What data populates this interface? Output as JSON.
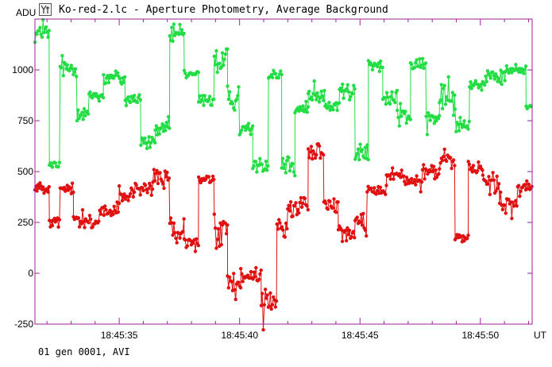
{
  "window": {
    "title": "Ko-red-2.lc - Aperture Photometry, Average Background",
    "icon": "lightcurve-app-icon"
  },
  "footer": {
    "text": "01 gen 0001, AVI"
  },
  "colors": {
    "frame": "#a020a0",
    "green": "#22dd44",
    "red": "#e01010"
  },
  "chart_data": {
    "type": "line",
    "title": "Ko-red-2.lc - Aperture Photometry, Average Background",
    "xlabel": "UT",
    "ylabel": "ADU",
    "xlim": [
      31.5,
      52.15
    ],
    "ylim": [
      -250,
      1250
    ],
    "x_ticks": [
      {
        "value": 35,
        "label": "18:45:35"
      },
      {
        "value": 40,
        "label": "18:45:40"
      },
      {
        "value": 45,
        "label": "18:45:45"
      },
      {
        "value": 50,
        "label": "18:45:50"
      }
    ],
    "y_ticks": [
      {
        "value": 1000,
        "label": "1000"
      },
      {
        "value": 750,
        "label": "750"
      },
      {
        "value": 500,
        "label": "500"
      },
      {
        "value": 250,
        "label": "250"
      },
      {
        "value": 0,
        "label": "0"
      },
      {
        "value": -250,
        "label": "-250"
      }
    ],
    "grid": false,
    "series": [
      {
        "color": "#22dd44",
        "segments": [
          {
            "x0": 31.5,
            "x1": 32.1,
            "level": 1180,
            "noise": 45
          },
          {
            "x0": 32.1,
            "x1": 32.55,
            "level": 530,
            "noise": 25
          },
          {
            "x0": 32.55,
            "x1": 33.25,
            "level": 1010,
            "noise": 35
          },
          {
            "x0": 33.25,
            "x1": 33.75,
            "level": 790,
            "noise": 40
          },
          {
            "x0": 33.75,
            "x1": 34.35,
            "level": 875,
            "noise": 25
          },
          {
            "x0": 34.35,
            "x1": 35.25,
            "level": 960,
            "noise": 40
          },
          {
            "x0": 35.25,
            "x1": 35.9,
            "level": 860,
            "noise": 40
          },
          {
            "x0": 35.9,
            "x1": 36.5,
            "level": 640,
            "noise": 35
          },
          {
            "x0": 36.5,
            "x1": 37.1,
            "level": 710,
            "noise": 30
          },
          {
            "x0": 37.1,
            "x1": 37.7,
            "level": 1170,
            "noise": 40
          },
          {
            "x0": 37.7,
            "x1": 38.3,
            "level": 980,
            "noise": 20
          },
          {
            "x0": 38.3,
            "x1": 38.95,
            "level": 850,
            "noise": 25
          },
          {
            "x0": 38.95,
            "x1": 39.5,
            "level": 1040,
            "noise": 70
          },
          {
            "x0": 39.5,
            "x1": 40.0,
            "level": 860,
            "noise": 50
          },
          {
            "x0": 40.0,
            "x1": 40.55,
            "level": 710,
            "noise": 30
          },
          {
            "x0": 40.55,
            "x1": 41.2,
            "level": 530,
            "noise": 25
          },
          {
            "x0": 41.2,
            "x1": 41.75,
            "level": 980,
            "noise": 35
          },
          {
            "x0": 41.75,
            "x1": 42.3,
            "level": 540,
            "noise": 50
          },
          {
            "x0": 42.3,
            "x1": 42.85,
            "level": 810,
            "noise": 40
          },
          {
            "x0": 42.85,
            "x1": 43.55,
            "level": 860,
            "noise": 45
          },
          {
            "x0": 43.55,
            "x1": 44.15,
            "level": 820,
            "noise": 40
          },
          {
            "x0": 44.15,
            "x1": 44.8,
            "level": 900,
            "noise": 45
          },
          {
            "x0": 44.8,
            "x1": 45.35,
            "level": 590,
            "noise": 35
          },
          {
            "x0": 45.35,
            "x1": 45.95,
            "level": 1020,
            "noise": 25
          },
          {
            "x0": 45.95,
            "x1": 46.55,
            "level": 860,
            "noise": 40
          },
          {
            "x0": 46.55,
            "x1": 47.1,
            "level": 780,
            "noise": 60
          },
          {
            "x0": 47.1,
            "x1": 47.75,
            "level": 1020,
            "noise": 25
          },
          {
            "x0": 47.75,
            "x1": 48.3,
            "level": 760,
            "noise": 45
          },
          {
            "x0": 48.3,
            "x1": 48.95,
            "level": 880,
            "noise": 70
          },
          {
            "x0": 48.95,
            "x1": 49.55,
            "level": 740,
            "noise": 35
          },
          {
            "x0": 49.55,
            "x1": 50.3,
            "level": 930,
            "noise": 40
          },
          {
            "x0": 50.3,
            "x1": 51.05,
            "level": 960,
            "noise": 35
          },
          {
            "x0": 51.05,
            "x1": 51.9,
            "level": 1000,
            "noise": 25
          },
          {
            "x0": 51.9,
            "x1": 52.15,
            "level": 820,
            "noise": 15
          }
        ]
      },
      {
        "color": "#e01010",
        "segments": [
          {
            "x0": 31.5,
            "x1": 32.1,
            "level": 420,
            "noise": 25
          },
          {
            "x0": 32.1,
            "x1": 32.55,
            "level": 260,
            "noise": 25
          },
          {
            "x0": 32.55,
            "x1": 33.1,
            "level": 410,
            "noise": 30
          },
          {
            "x0": 33.1,
            "x1": 34.2,
            "level": 260,
            "noise": 40
          },
          {
            "x0": 34.2,
            "x1": 35.0,
            "level": 310,
            "noise": 40
          },
          {
            "x0": 35.0,
            "x1": 35.5,
            "level": 370,
            "noise": 35
          },
          {
            "x0": 35.5,
            "x1": 36.4,
            "level": 410,
            "noise": 45
          },
          {
            "x0": 36.4,
            "x1": 37.1,
            "level": 470,
            "noise": 40
          },
          {
            "x0": 37.1,
            "x1": 37.7,
            "level": 220,
            "noise": 60
          },
          {
            "x0": 37.7,
            "x1": 38.3,
            "level": 150,
            "noise": 35
          },
          {
            "x0": 38.3,
            "x1": 38.95,
            "level": 460,
            "noise": 20
          },
          {
            "x0": 38.95,
            "x1": 39.5,
            "level": 200,
            "noise": 70
          },
          {
            "x0": 39.5,
            "x1": 40.05,
            "level": -60,
            "noise": 40
          },
          {
            "x0": 40.05,
            "x1": 40.9,
            "level": -10,
            "noise": 40
          },
          {
            "x0": 40.9,
            "x1": 41.55,
            "level": -140,
            "noise": 60
          },
          {
            "x0": 41.55,
            "x1": 42.0,
            "level": 230,
            "noise": 70
          },
          {
            "x0": 42.0,
            "x1": 42.85,
            "level": 320,
            "noise": 40
          },
          {
            "x0": 42.85,
            "x1": 43.5,
            "level": 600,
            "noise": 40
          },
          {
            "x0": 43.5,
            "x1": 44.1,
            "level": 340,
            "noise": 30
          },
          {
            "x0": 44.1,
            "x1": 44.8,
            "level": 200,
            "noise": 50
          },
          {
            "x0": 44.8,
            "x1": 45.3,
            "level": 250,
            "noise": 40
          },
          {
            "x0": 45.3,
            "x1": 46.1,
            "level": 410,
            "noise": 25
          },
          {
            "x0": 46.1,
            "x1": 46.85,
            "level": 480,
            "noise": 25
          },
          {
            "x0": 46.85,
            "x1": 47.6,
            "level": 450,
            "noise": 30
          },
          {
            "x0": 47.6,
            "x1": 48.3,
            "level": 500,
            "noise": 35
          },
          {
            "x0": 48.3,
            "x1": 48.95,
            "level": 560,
            "noise": 45
          },
          {
            "x0": 48.95,
            "x1": 49.5,
            "level": 180,
            "noise": 25
          },
          {
            "x0": 49.5,
            "x1": 50.1,
            "level": 520,
            "noise": 35
          },
          {
            "x0": 50.1,
            "x1": 50.8,
            "level": 450,
            "noise": 45
          },
          {
            "x0": 50.8,
            "x1": 51.55,
            "level": 360,
            "noise": 50
          },
          {
            "x0": 51.55,
            "x1": 52.15,
            "level": 420,
            "noise": 30
          }
        ]
      }
    ]
  }
}
